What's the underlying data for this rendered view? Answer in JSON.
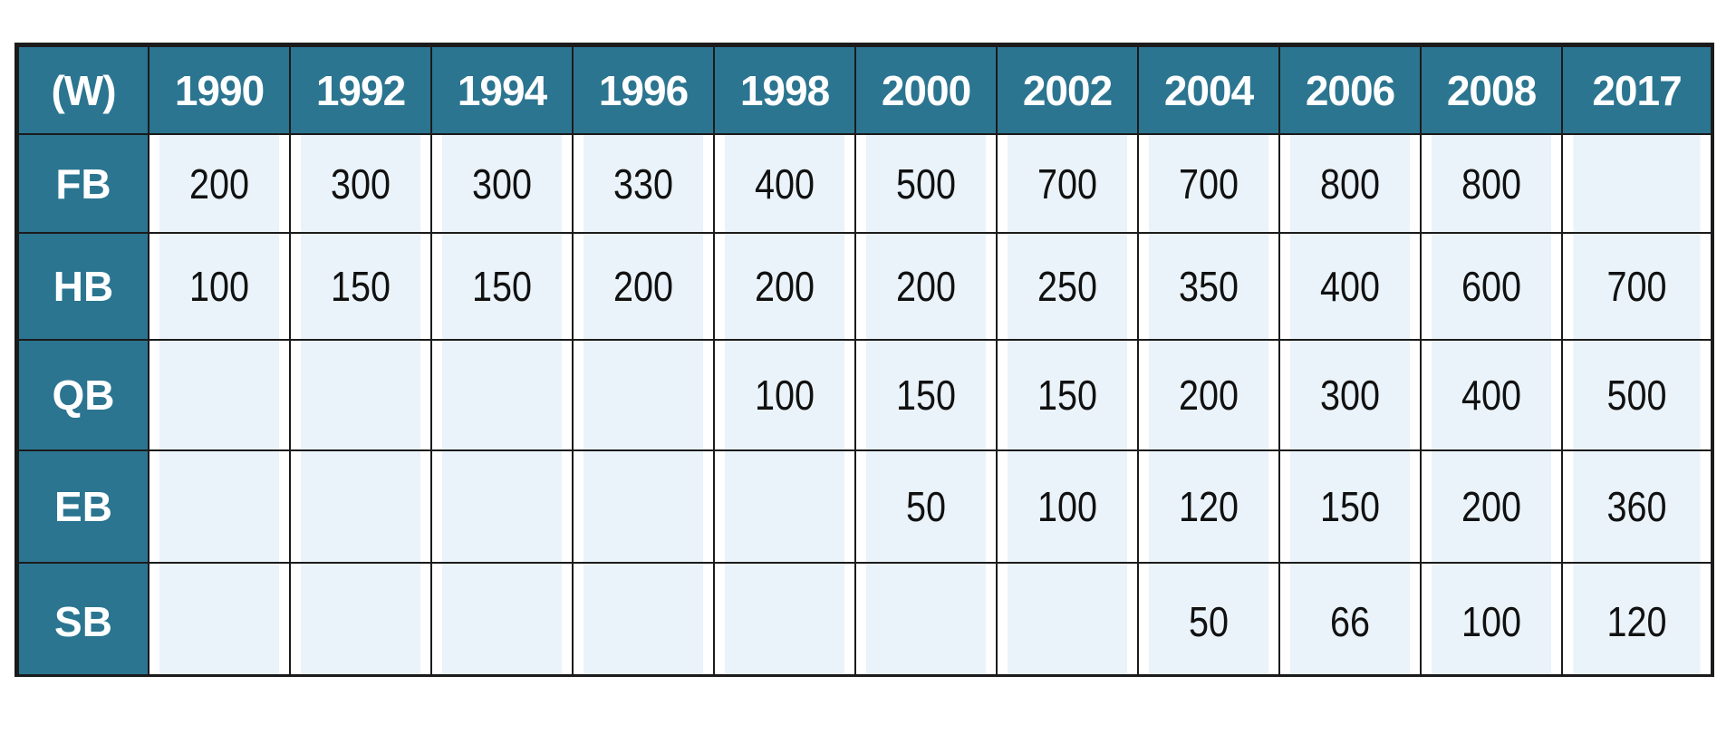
{
  "table": {
    "corner_label": "(W)",
    "years": [
      "1990",
      "1992",
      "1994",
      "1996",
      "1998",
      "2000",
      "2002",
      "2004",
      "2006",
      "2008",
      "2017"
    ],
    "rows": [
      {
        "label": "FB",
        "values": [
          "200",
          "300",
          "300",
          "330",
          "400",
          "500",
          "700",
          "700",
          "800",
          "800",
          ""
        ]
      },
      {
        "label": "HB",
        "values": [
          "100",
          "150",
          "150",
          "200",
          "200",
          "200",
          "250",
          "350",
          "400",
          "600",
          "700"
        ]
      },
      {
        "label": "QB",
        "values": [
          "",
          "",
          "",
          "",
          "100",
          "150",
          "150",
          "200",
          "300",
          "400",
          "500"
        ]
      },
      {
        "label": "EB",
        "values": [
          "",
          "",
          "",
          "",
          "",
          "50",
          "100",
          "120",
          "150",
          "200",
          "360"
        ]
      },
      {
        "label": "SB",
        "values": [
          "",
          "",
          "",
          "",
          "",
          "",
          "",
          "50",
          "66",
          "100",
          "120"
        ]
      }
    ]
  },
  "colors": {
    "header_background": "#2b7590",
    "header_text": "#ffffff",
    "cell_background": "#eaf3fa",
    "border": "#1b1b1b"
  }
}
